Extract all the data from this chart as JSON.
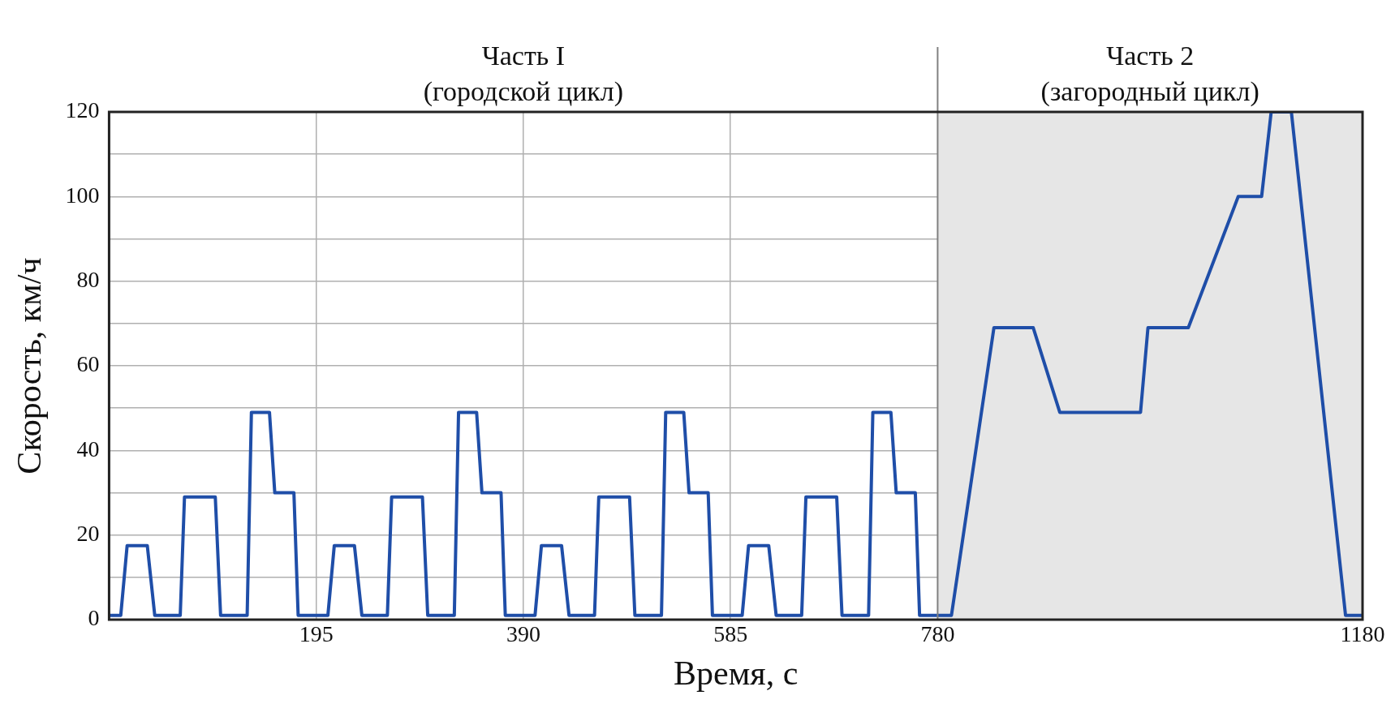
{
  "chart_data": {
    "type": "line",
    "xlabel": "Время, с",
    "ylabel": "Скорость, км/ч",
    "x": [
      0,
      11,
      17,
      36,
      43,
      67,
      71,
      100,
      105,
      130,
      134,
      151,
      156,
      174,
      178,
      206,
      212,
      231,
      238,
      262,
      266,
      295,
      300,
      325,
      329,
      346,
      351,
      369,
      373,
      401,
      407,
      426,
      433,
      457,
      461,
      490,
      495,
      520,
      524,
      541,
      546,
      564,
      568,
      596,
      602,
      621,
      628,
      652,
      656,
      685,
      690,
      715,
      719,
      736,
      741,
      759,
      763,
      793,
      833,
      870,
      895,
      971,
      978,
      1016,
      1063,
      1085,
      1094,
      1113,
      1164,
      1180
    ],
    "series": [
      {
        "color": "#1f4ea8",
        "values": [
          1,
          1,
          17.5,
          17.5,
          1,
          1,
          29,
          29,
          1,
          1,
          49,
          49,
          30,
          30,
          1,
          1,
          17.5,
          17.5,
          1,
          1,
          29,
          29,
          1,
          1,
          49,
          49,
          30,
          30,
          1,
          1,
          17.5,
          17.5,
          1,
          1,
          29,
          29,
          1,
          1,
          49,
          49,
          30,
          30,
          1,
          1,
          17.5,
          17.5,
          1,
          1,
          29,
          29,
          1,
          1,
          49,
          49,
          30,
          30,
          1,
          1,
          69,
          69,
          49,
          49,
          69,
          69,
          100,
          100,
          120,
          120,
          1,
          1
        ]
      }
    ],
    "xlim": [
      0,
      1180
    ],
    "xticks": [
      {
        "value": 0,
        "label": null
      },
      195,
      390,
      585,
      780,
      1180
    ],
    "ylim": [
      0,
      120
    ],
    "yticks": [
      0,
      {
        "value": 10,
        "label": null
      },
      20,
      {
        "value": 30,
        "label": null
      },
      40,
      {
        "value": 50,
        "label": null
      },
      60,
      {
        "value": 70,
        "label": null
      },
      80,
      {
        "value": 90,
        "label": null
      },
      100,
      {
        "value": 110,
        "label": null
      },
      120
    ],
    "annotations": [
      "Часть I\n(городской цикл)"
    ],
    "bands": [
      {
        "axis": "x",
        "from": 780,
        "to": 1180,
        "label": "Часть 2\n(загородный цикл)",
        "color": "#e6e6e6"
      }
    ],
    "ref_lines": [
      {
        "axis": "x",
        "value": 780,
        "color": "#808080"
      }
    ],
    "grid": true,
    "legend": false,
    "marker": "none",
    "line_style": "solid"
  }
}
